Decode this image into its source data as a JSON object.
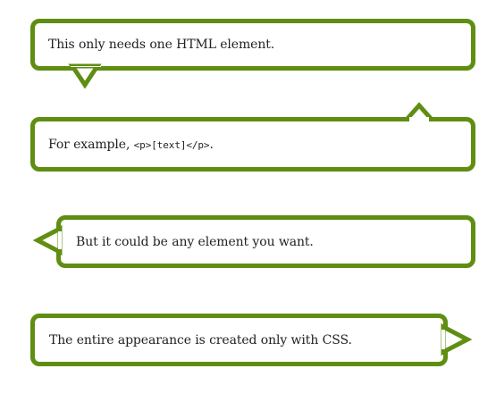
{
  "bubbles": [
    {
      "text": "This only needs one HTML element.",
      "tail": "bottom-left"
    },
    {
      "prefix": "For example, ",
      "code": "<p>[text]</p>",
      "suffix": ".",
      "tail": "top-right"
    },
    {
      "text": "But it could be any element you want.",
      "tail": "left"
    },
    {
      "text": "The entire appearance is created only with CSS.",
      "tail": "right"
    }
  ],
  "colors": {
    "border": "#5f8e12",
    "background": "#ffffff",
    "text": "#222222"
  }
}
